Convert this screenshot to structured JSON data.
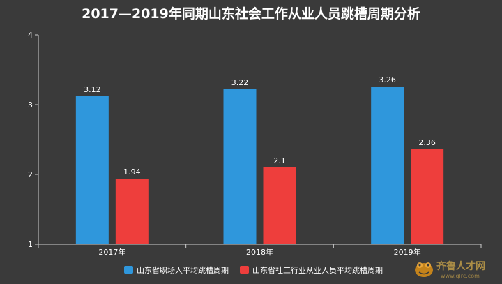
{
  "chart_data": {
    "type": "bar",
    "title": "2017—2019年同期山东社会工作从业人员跳槽周期分析",
    "categories": [
      "2017年",
      "2018年",
      "2019年"
    ],
    "series": [
      {
        "name": "山东省职场人平均跳槽周期",
        "color": "#2f97dc",
        "values": [
          3.12,
          3.22,
          3.26
        ]
      },
      {
        "name": "山东省社工行业从业人员平均跳槽周期",
        "color": "#ee3e3c",
        "values": [
          1.94,
          2.1,
          2.36
        ]
      }
    ],
    "ylim": [
      1,
      4
    ],
    "yticks": [
      1,
      2,
      3,
      4
    ],
    "xlabel": "",
    "ylabel": "",
    "grid": false,
    "legend_position": "bottom"
  },
  "watermark": {
    "brand": "齐鲁人才网",
    "url": "www.qlrc.com"
  },
  "colors": {
    "background": "#3a3a3a",
    "axis": "#cfcfcf",
    "text": "#ffffff"
  }
}
